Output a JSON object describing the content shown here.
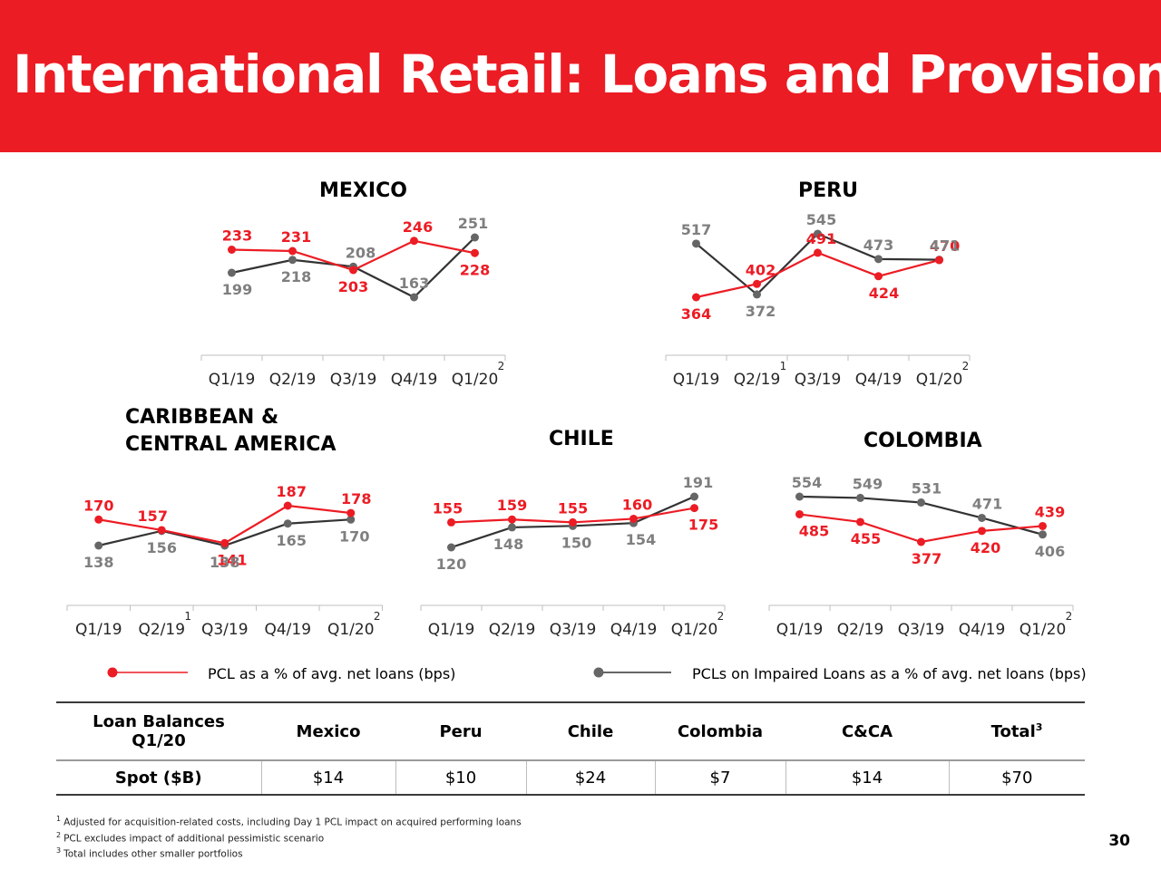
{
  "header": {
    "title": "International Retail:  Loans and Provisions"
  },
  "colors": {
    "pcl": "#ec1c24",
    "impaired": "#333333",
    "impaired_marker": "#666666",
    "label_gray": "#7f7f7f",
    "axis": "#bfbfbf"
  },
  "chart_data": [
    {
      "id": "mexico",
      "type": "line",
      "title_lines": [
        "MEXICO"
      ],
      "categories": [
        "Q1/19",
        "Q2/19",
        "Q3/19",
        "Q4/19",
        "Q1/20"
      ],
      "category_sup": [
        "",
        "",
        "",
        "",
        "2"
      ],
      "series": [
        {
          "name": "PCL as a % of avg. net loans (bps)",
          "key": "pcl",
          "values": [
            233,
            231,
            203,
            246,
            228
          ]
        },
        {
          "name": "PCLs on Impaired Loans as a % of avg. net loans (bps)",
          "key": "impaired",
          "values": [
            199,
            218,
            208,
            163,
            251
          ]
        }
      ]
    },
    {
      "id": "peru",
      "type": "line",
      "title_lines": [
        "PERU"
      ],
      "categories": [
        "Q1/19",
        "Q2/19",
        "Q3/19",
        "Q4/19",
        "Q1/20"
      ],
      "category_sup": [
        "",
        "1",
        "",
        "",
        "2"
      ],
      "series": [
        {
          "name": "PCL as a % of avg. net loans (bps)",
          "key": "pcl",
          "values": [
            364,
            402,
            491,
            424,
            470
          ]
        },
        {
          "name": "PCLs on Impaired Loans as a % of avg. net loans (bps)",
          "key": "impaired",
          "values": [
            517,
            372,
            545,
            473,
            471
          ]
        }
      ]
    },
    {
      "id": "cca",
      "type": "line",
      "title_lines": [
        "CARIBBEAN &",
        "CENTRAL AMERICA"
      ],
      "categories": [
        "Q1/19",
        "Q2/19",
        "Q3/19",
        "Q4/19",
        "Q1/20"
      ],
      "category_sup": [
        "",
        "1",
        "",
        "",
        "2"
      ],
      "series": [
        {
          "name": "PCL as a % of avg. net loans (bps)",
          "key": "pcl",
          "values": [
            170,
            157,
            141,
            187,
            178
          ]
        },
        {
          "name": "PCLs on Impaired Loans as a % of avg. net loans (bps)",
          "key": "impaired",
          "values": [
            138,
            156,
            138,
            165,
            170
          ]
        }
      ]
    },
    {
      "id": "chile",
      "type": "line",
      "title_lines": [
        "CHILE"
      ],
      "categories": [
        "Q1/19",
        "Q2/19",
        "Q3/19",
        "Q4/19",
        "Q1/20"
      ],
      "category_sup": [
        "",
        "",
        "",
        "",
        "2"
      ],
      "series": [
        {
          "name": "PCL as a % of avg. net loans (bps)",
          "key": "pcl",
          "values": [
            155,
            159,
            155,
            160,
            175
          ]
        },
        {
          "name": "PCLs on Impaired Loans as a % of avg. net loans (bps)",
          "key": "impaired",
          "values": [
            120,
            148,
            150,
            154,
            191
          ]
        }
      ]
    },
    {
      "id": "colombia",
      "type": "line",
      "title_lines": [
        "COLOMBIA"
      ],
      "categories": [
        "Q1/19",
        "Q2/19",
        "Q3/19",
        "Q4/19",
        "Q1/20"
      ],
      "category_sup": [
        "",
        "",
        "",
        "",
        "2"
      ],
      "series": [
        {
          "name": "PCL as a % of avg. net loans (bps)",
          "key": "pcl",
          "values": [
            485,
            455,
            377,
            420,
            439
          ]
        },
        {
          "name": "PCLs on Impaired Loans as a % of avg. net loans (bps)",
          "key": "impaired",
          "values": [
            554,
            549,
            531,
            471,
            406
          ]
        }
      ]
    }
  ],
  "legend": {
    "pcl_label": "PCL as a % of avg. net loans (bps)",
    "impaired_label": "PCLs on Impaired Loans as a % of avg. net loans (bps)"
  },
  "table": {
    "header_first_line1": "Loan Balances",
    "header_first_line2": "Q1/20",
    "columns": [
      "Mexico",
      "Peru",
      "Chile",
      "Colombia",
      "C&CA"
    ],
    "total_label": "Total",
    "total_sup": "3",
    "row_label": "Spot ($B)",
    "values": [
      "$14",
      "$10",
      "$24",
      "$7",
      "$14",
      "$70"
    ]
  },
  "footnotes": [
    {
      "num": "1",
      "text": "Adjusted for acquisition-related costs, including Day 1 PCL impact on acquired performing loans"
    },
    {
      "num": "2",
      "text": "PCL excludes impact of additional pessimistic scenario"
    },
    {
      "num": "3",
      "text": "Total includes other smaller portfolios"
    }
  ],
  "page_number": "30"
}
